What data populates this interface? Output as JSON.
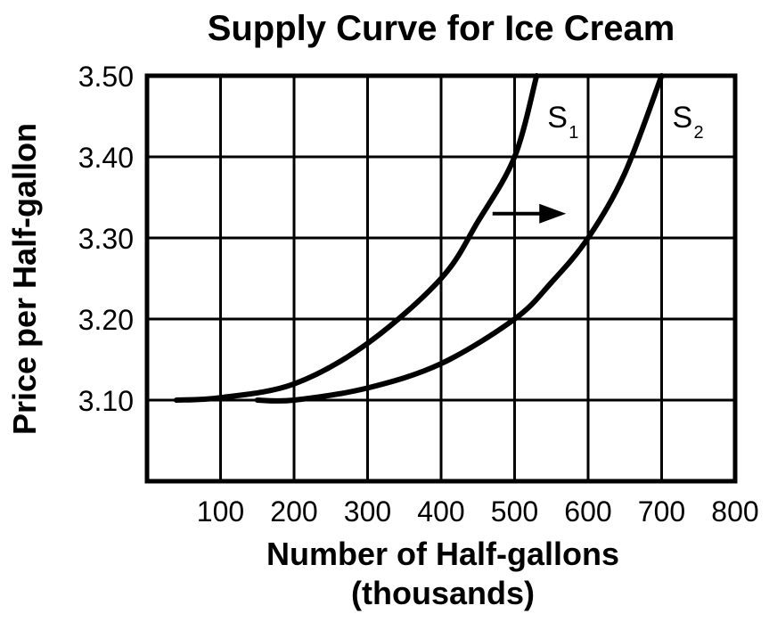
{
  "chart_data": {
    "type": "line",
    "title": "Supply Curve for Ice Cream",
    "xlabel": "Number of Half-gallons",
    "xlabel_line2": "(thousands)",
    "ylabel": "Price per Half-gallon",
    "xlim": [
      0,
      800
    ],
    "ylim": [
      3.0,
      3.5
    ],
    "x_ticks": [
      "100",
      "200",
      "300",
      "400",
      "500",
      "600",
      "700",
      "800"
    ],
    "y_ticks": [
      "3.10",
      "3.20",
      "3.30",
      "3.40",
      "3.50"
    ],
    "grid": true,
    "series": [
      {
        "name": "S",
        "subscript": "1",
        "x": [
          40,
          100,
          200,
          300,
          400,
          450,
          500,
          530
        ],
        "y": [
          3.1,
          3.103,
          3.12,
          3.17,
          3.25,
          3.32,
          3.4,
          3.5
        ]
      },
      {
        "name": "S",
        "subscript": "2",
        "x": [
          150,
          200,
          300,
          400,
          500,
          550,
          600,
          650,
          700
        ],
        "y": [
          3.1,
          3.1,
          3.115,
          3.145,
          3.2,
          3.245,
          3.3,
          3.38,
          3.5
        ]
      }
    ],
    "annotations": [
      {
        "type": "arrow",
        "from": [
          470,
          3.33
        ],
        "to": [
          570,
          3.33
        ],
        "meaning": "supply shift right"
      }
    ],
    "colors": {
      "line": "#000000",
      "grid": "#000000",
      "background": "#ffffff"
    }
  }
}
